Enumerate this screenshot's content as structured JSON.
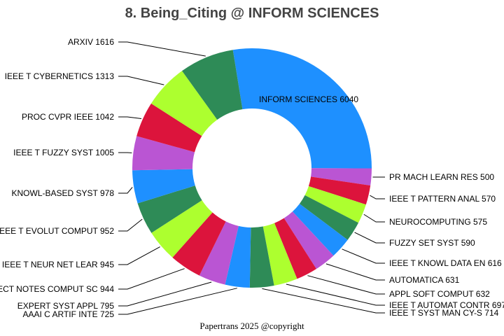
{
  "chart_data": {
    "type": "pie",
    "variant": "donut",
    "title": "8. Being_Citing @ INFORM SCIENCES",
    "footer": "Papertrans 2025 @copyright",
    "direction": "clockwise",
    "palette": [
      "#1E90FF",
      "#BA55D3",
      "#DC143C",
      "#ADFF2F",
      "#2E8B57"
    ],
    "slices": [
      {
        "label": "INFORM SCIENCES",
        "value": 6040
      },
      {
        "label": "PR MACH LEARN RES",
        "value": 500
      },
      {
        "label": "IEEE T PATTERN ANAL",
        "value": 570
      },
      {
        "label": "NEUROCOMPUTING",
        "value": 575
      },
      {
        "label": "FUZZY SET SYST",
        "value": 590
      },
      {
        "label": "IEEE T KNOWL DATA EN",
        "value": 616
      },
      {
        "label": "AUTOMATICA",
        "value": 631
      },
      {
        "label": "APPL SOFT COMPUT",
        "value": 632
      },
      {
        "label": "IEEE T AUTOMAT CONTR",
        "value": 697
      },
      {
        "label": "IEEE T SYST MAN CY-S",
        "value": 714
      },
      {
        "label": "AAAI C ARTIF INTE",
        "value": 725
      },
      {
        "label": "EXPERT SYST APPL",
        "value": 795
      },
      {
        "label": "LECT NOTES COMPUT SC",
        "value": 944
      },
      {
        "label": "IEEE T NEUR NET LEAR",
        "value": 945
      },
      {
        "label": "IEEE T EVOLUT COMPUT",
        "value": 952
      },
      {
        "label": "KNOWL-BASED SYST",
        "value": 978
      },
      {
        "label": "IEEE T FUZZY SYST",
        "value": 1005
      },
      {
        "label": "PROC CVPR IEEE",
        "value": 1042
      },
      {
        "label": "IEEE T CYBERNETICS",
        "value": 1313
      },
      {
        "label": "ARXIV",
        "value": 1616
      }
    ]
  }
}
